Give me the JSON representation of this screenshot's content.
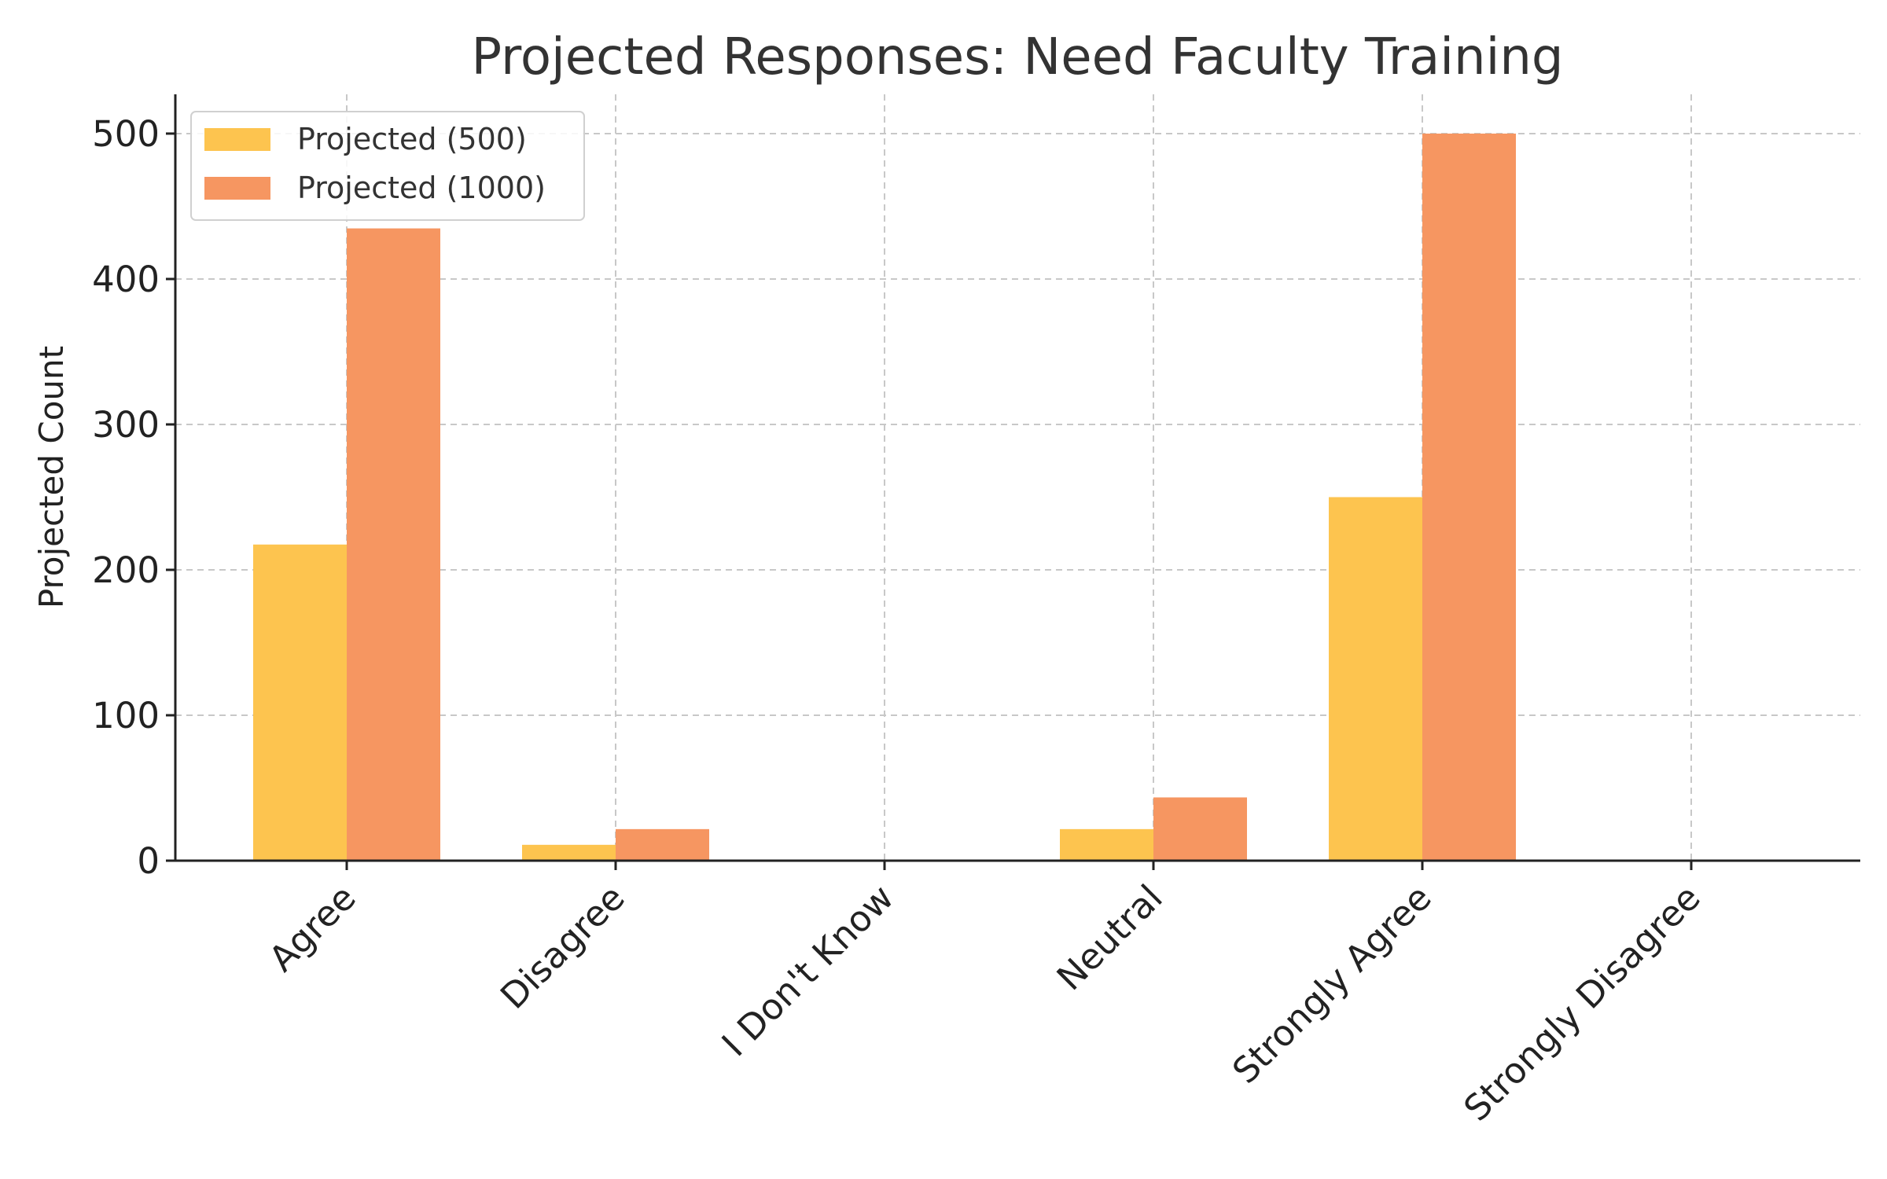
{
  "chart_data": {
    "type": "bar",
    "title": "Projected Responses: Need Faculty Training",
    "xlabel": "",
    "ylabel": "Projected Count",
    "categories": [
      "Agree",
      "Disagree",
      "I Don't Know",
      "Neutral",
      "Strongly Agree",
      "Strongly Disagree"
    ],
    "series": [
      {
        "name": "Projected (500)",
        "color": "#fdc44f",
        "values": [
          217.4,
          10.9,
          0,
          21.7,
          250,
          0
        ]
      },
      {
        "name": "Projected (1000)",
        "color": "#f69661",
        "values": [
          434.8,
          21.7,
          0,
          43.5,
          500,
          0
        ]
      }
    ],
    "ylim": [
      0,
      527
    ],
    "yticks": [
      0,
      100,
      200,
      300,
      400,
      500
    ],
    "grid": true,
    "legend_position": "top-left"
  }
}
